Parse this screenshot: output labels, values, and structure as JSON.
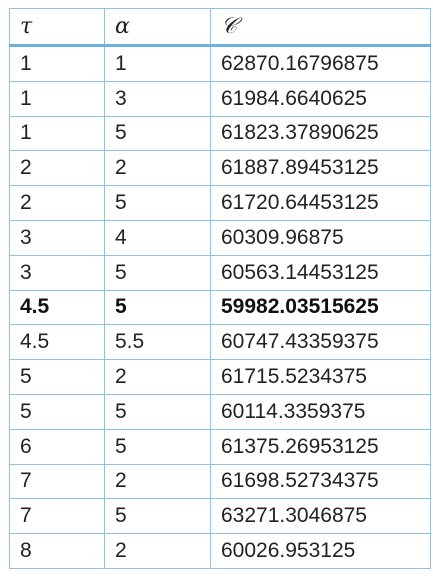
{
  "table": {
    "headers": [
      "τ",
      "α",
      "𝒞"
    ],
    "rows": [
      {
        "tau": "1",
        "alpha": "1",
        "c": "62870.16796875",
        "bold": false
      },
      {
        "tau": "1",
        "alpha": "3",
        "c": "61984.6640625",
        "bold": false
      },
      {
        "tau": "1",
        "alpha": "5",
        "c": "61823.37890625",
        "bold": false
      },
      {
        "tau": "2",
        "alpha": "2",
        "c": "61887.89453125",
        "bold": false
      },
      {
        "tau": "2",
        "alpha": "5",
        "c": "61720.64453125",
        "bold": false
      },
      {
        "tau": "3",
        "alpha": "4",
        "c": "60309.96875",
        "bold": false
      },
      {
        "tau": "3",
        "alpha": "5",
        "c": "60563.14453125",
        "bold": false
      },
      {
        "tau": "4.5",
        "alpha": "5",
        "c": "59982.03515625",
        "bold": true
      },
      {
        "tau": "4.5",
        "alpha": "5.5",
        "c": "60747.43359375",
        "bold": false
      },
      {
        "tau": "5",
        "alpha": "2",
        "c": "61715.5234375",
        "bold": false
      },
      {
        "tau": "5",
        "alpha": "5",
        "c": "60114.3359375",
        "bold": false
      },
      {
        "tau": "6",
        "alpha": "5",
        "c": "61375.26953125",
        "bold": false
      },
      {
        "tau": "7",
        "alpha": "2",
        "c": "61698.52734375",
        "bold": false
      },
      {
        "tau": "7",
        "alpha": "5",
        "c": "63271.3046875",
        "bold": false
      },
      {
        "tau": "8",
        "alpha": "2",
        "c": "60026.953125",
        "bold": false
      }
    ]
  }
}
